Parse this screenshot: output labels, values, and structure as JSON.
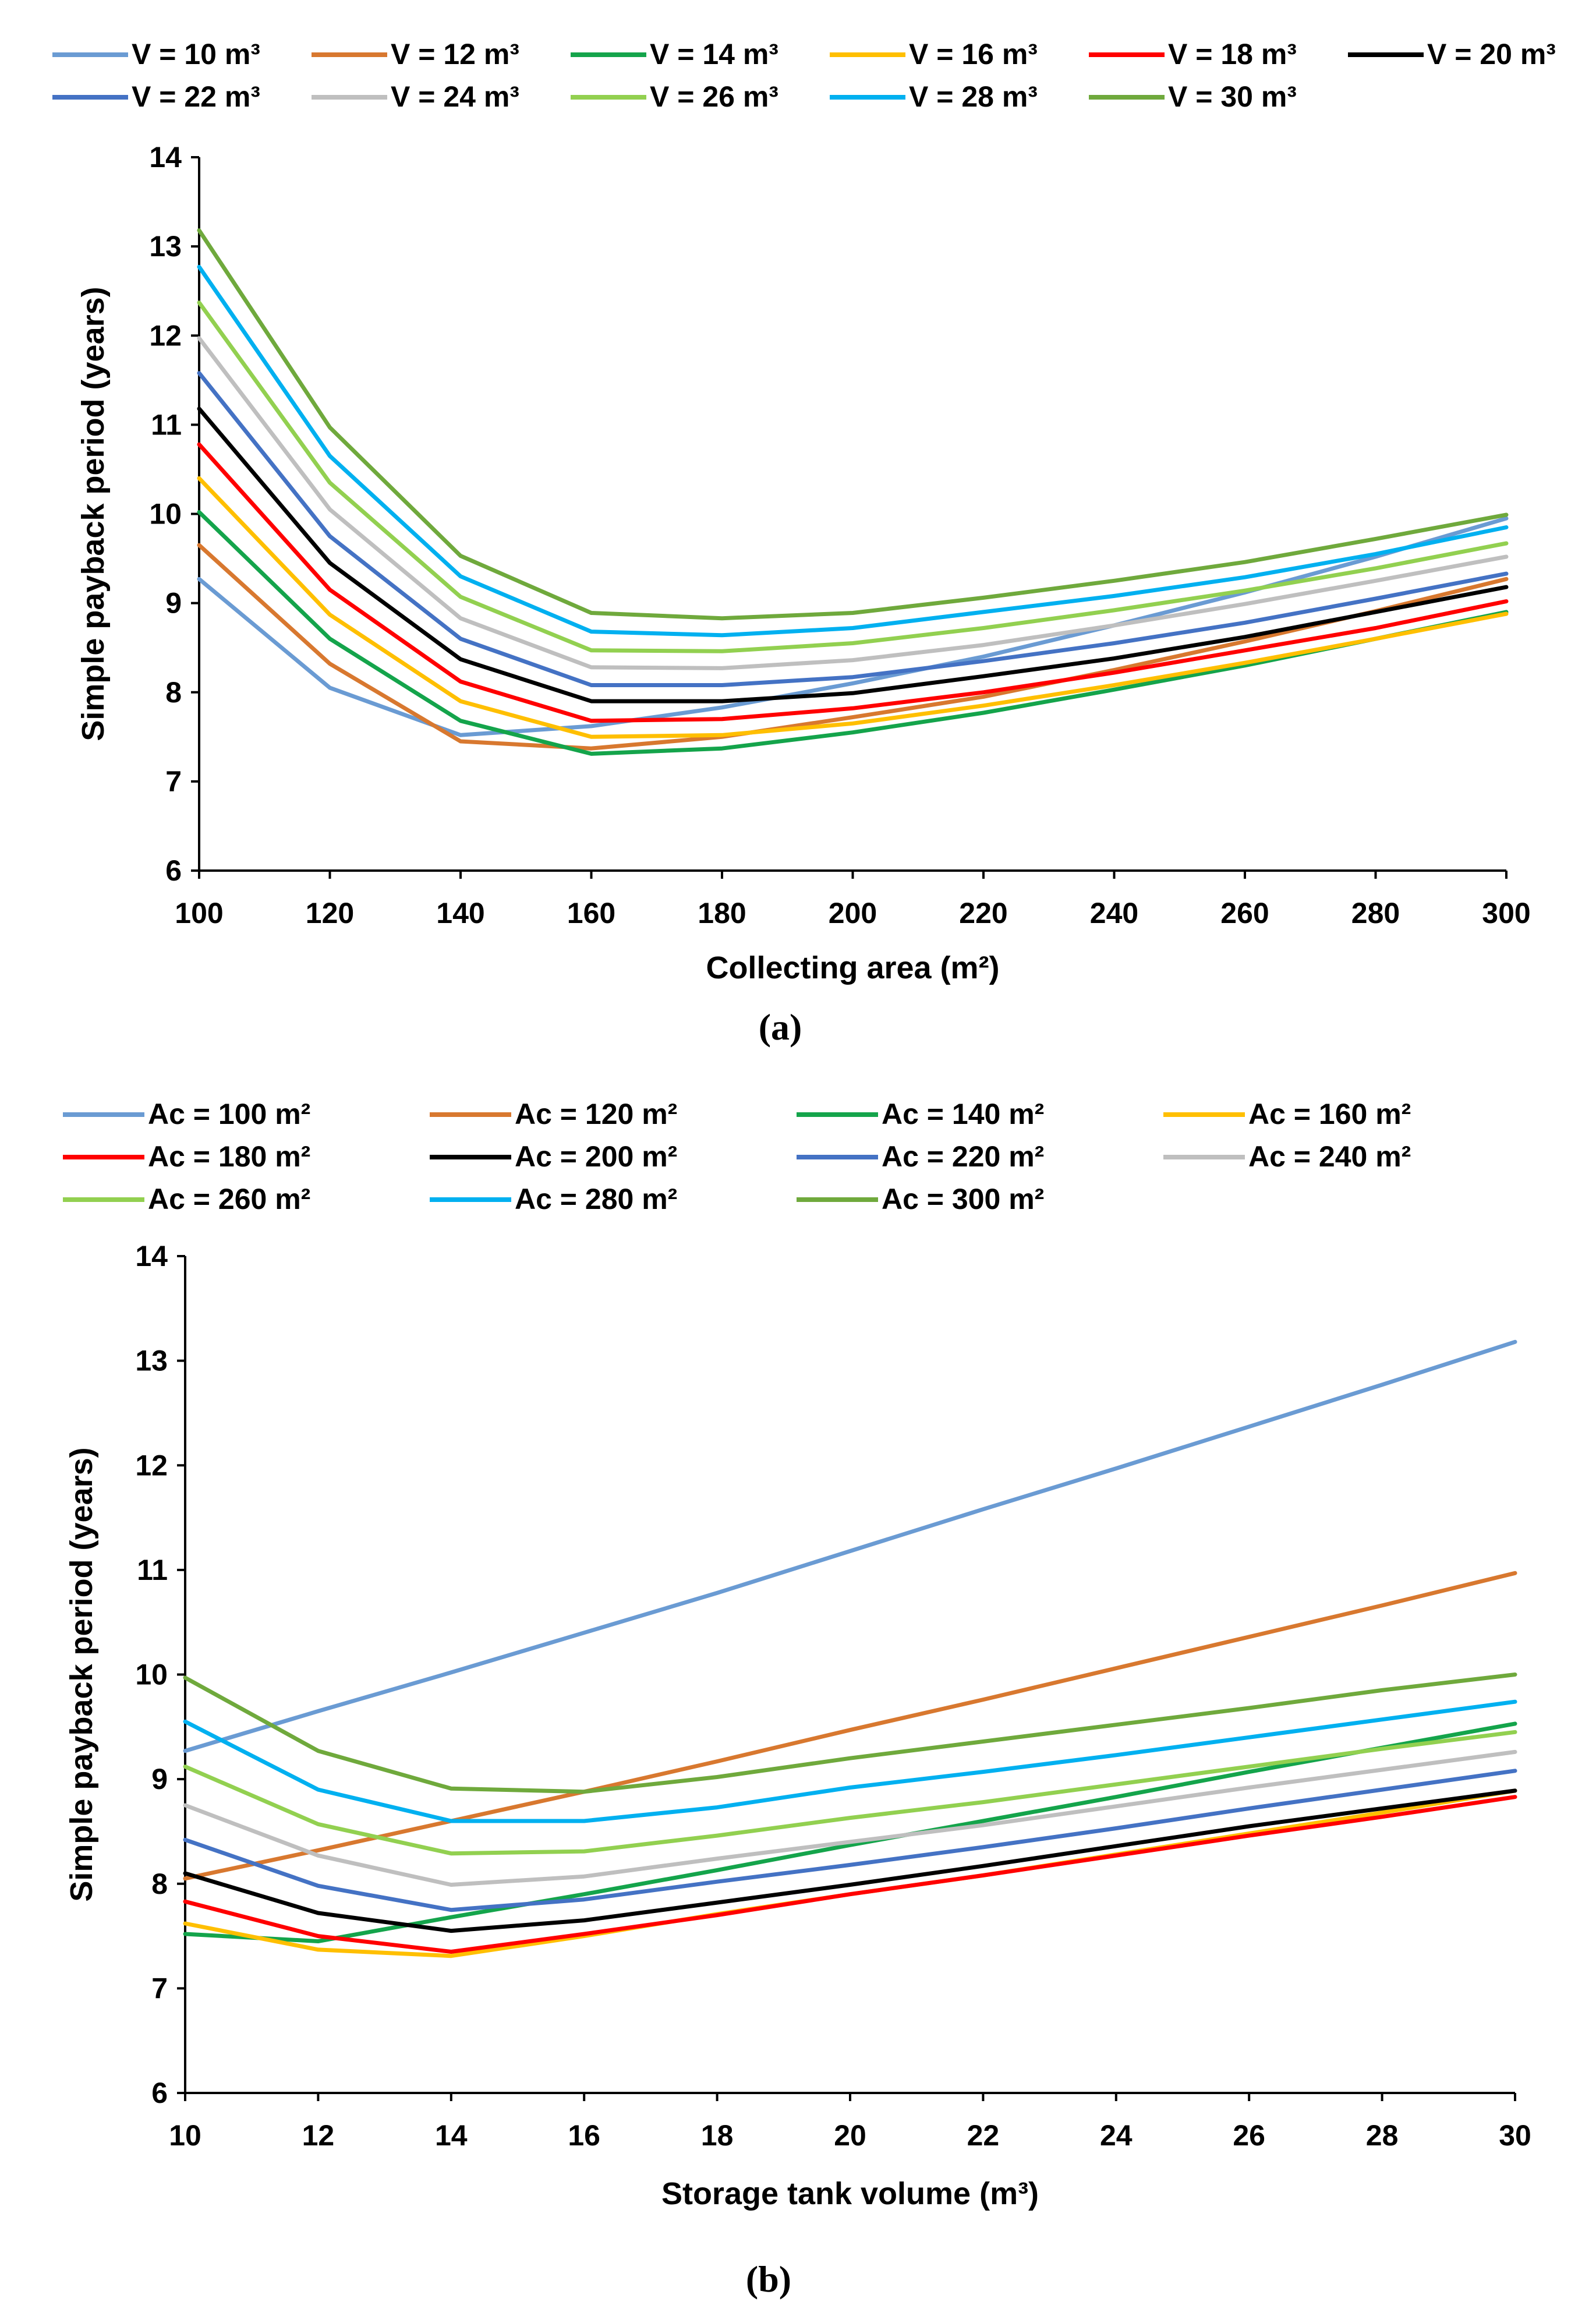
{
  "chart_data": [
    {
      "type": "line",
      "panel_label": "(a)",
      "xlabel": "Collecting area (m²)",
      "ylabel": "Simple payback period (years)",
      "x": [
        100,
        120,
        140,
        160,
        180,
        200,
        220,
        240,
        260,
        280,
        300
      ],
      "xlim": [
        100,
        300
      ],
      "ylim": [
        6,
        14
      ],
      "x_ticks": [
        "100",
        "120",
        "140",
        "160",
        "180",
        "200",
        "220",
        "240",
        "260",
        "280",
        "300"
      ],
      "y_ticks": [
        "6",
        "7",
        "8",
        "9",
        "10",
        "11",
        "12",
        "13",
        "14"
      ],
      "grid": false,
      "legend_position": "top",
      "series": [
        {
          "name": "V = 10 m³",
          "color": "#6a9bd3",
          "values": [
            9.27,
            8.05,
            7.52,
            7.62,
            7.83,
            8.1,
            8.4,
            8.75,
            9.12,
            9.52,
            9.95
          ]
        },
        {
          "name": "V = 12 m³",
          "color": "#d8782f",
          "values": [
            9.65,
            8.32,
            7.45,
            7.37,
            7.5,
            7.72,
            7.95,
            8.25,
            8.57,
            8.91,
            9.27
          ]
        },
        {
          "name": "V = 14 m³",
          "color": "#14a44b",
          "values": [
            10.02,
            8.6,
            7.68,
            7.31,
            7.37,
            7.55,
            7.77,
            8.03,
            8.3,
            8.6,
            8.9
          ]
        },
        {
          "name": "V = 16 m³",
          "color": "#ffbf00",
          "values": [
            10.4,
            8.87,
            7.9,
            7.5,
            7.52,
            7.65,
            7.85,
            8.08,
            8.33,
            8.6,
            8.88
          ]
        },
        {
          "name": "V = 18 m³",
          "color": "#ff0000",
          "values": [
            10.78,
            9.15,
            8.12,
            7.68,
            7.7,
            7.82,
            8.0,
            8.22,
            8.47,
            8.72,
            9.02
          ]
        },
        {
          "name": "V = 20 m³",
          "color": "#000000",
          "values": [
            11.18,
            9.45,
            8.37,
            7.9,
            7.9,
            7.99,
            8.18,
            8.38,
            8.62,
            8.9,
            9.18
          ]
        },
        {
          "name": "V = 22 m³",
          "color": "#4472c4",
          "values": [
            11.58,
            9.75,
            8.6,
            8.08,
            8.08,
            8.17,
            8.35,
            8.55,
            8.78,
            9.05,
            9.33
          ]
        },
        {
          "name": "V = 24 m³",
          "color": "#bfbfbf",
          "values": [
            11.97,
            10.05,
            8.83,
            8.28,
            8.27,
            8.36,
            8.53,
            8.75,
            8.99,
            9.25,
            9.52
          ]
        },
        {
          "name": "V = 26 m³",
          "color": "#92d050",
          "values": [
            12.37,
            10.35,
            9.07,
            8.47,
            8.46,
            8.55,
            8.72,
            8.92,
            9.14,
            9.39,
            9.67
          ]
        },
        {
          "name": "V = 28 m³",
          "color": "#00b0f0",
          "values": [
            12.77,
            10.65,
            9.3,
            8.68,
            8.64,
            8.72,
            8.9,
            9.08,
            9.29,
            9.55,
            9.85
          ]
        },
        {
          "name": "V = 30 m³",
          "color": "#6fa93c",
          "values": [
            13.18,
            10.97,
            9.53,
            8.89,
            8.83,
            8.89,
            9.06,
            9.25,
            9.46,
            9.72,
            9.99
          ]
        }
      ]
    },
    {
      "type": "line",
      "panel_label": "(b)",
      "xlabel": "Storage tank volume (m³)",
      "ylabel": "Simple payback period (years)",
      "x": [
        10,
        12,
        14,
        16,
        18,
        20,
        22,
        24,
        26,
        28,
        30
      ],
      "xlim": [
        10,
        30
      ],
      "ylim": [
        6,
        14
      ],
      "x_ticks": [
        "10",
        "12",
        "14",
        "16",
        "18",
        "20",
        "22",
        "24",
        "26",
        "28",
        "30"
      ],
      "y_ticks": [
        "6",
        "7",
        "8",
        "9",
        "10",
        "11",
        "12",
        "13",
        "14"
      ],
      "grid": false,
      "legend_position": "top",
      "series": [
        {
          "name": "Ac = 100 m²",
          "color": "#6a9bd3",
          "values": [
            9.27,
            9.65,
            10.02,
            10.4,
            10.78,
            11.18,
            11.58,
            11.97,
            12.37,
            12.77,
            13.18
          ]
        },
        {
          "name": "Ac = 120 m²",
          "color": "#d8782f",
          "values": [
            8.05,
            8.32,
            8.6,
            8.88,
            9.17,
            9.47,
            9.76,
            10.06,
            10.36,
            10.66,
            10.97
          ]
        },
        {
          "name": "Ac = 140 m²",
          "color": "#14a44b",
          "values": [
            7.52,
            7.45,
            7.68,
            7.9,
            8.13,
            8.37,
            8.6,
            8.83,
            9.07,
            9.3,
            9.53
          ]
        },
        {
          "name": "Ac = 160 m²",
          "color": "#ffbf00",
          "values": [
            7.62,
            7.37,
            7.31,
            7.5,
            7.71,
            7.9,
            8.08,
            8.28,
            8.48,
            8.68,
            8.89
          ]
        },
        {
          "name": "Ac = 180 m²",
          "color": "#ff0000",
          "values": [
            7.83,
            7.5,
            7.35,
            7.52,
            7.7,
            7.9,
            8.08,
            8.27,
            8.46,
            8.64,
            8.83
          ]
        },
        {
          "name": "Ac = 200 m²",
          "color": "#000000",
          "values": [
            8.1,
            7.72,
            7.55,
            7.65,
            7.82,
            7.99,
            8.17,
            8.36,
            8.55,
            8.72,
            8.89
          ]
        },
        {
          "name": "Ac = 220 m²",
          "color": "#4472c4",
          "values": [
            8.42,
            7.98,
            7.75,
            7.85,
            8.02,
            8.18,
            8.35,
            8.53,
            8.72,
            8.9,
            9.08
          ]
        },
        {
          "name": "Ac = 240 m²",
          "color": "#bfbfbf",
          "values": [
            8.75,
            8.27,
            7.99,
            8.07,
            8.24,
            8.4,
            8.56,
            8.74,
            8.92,
            9.09,
            9.26
          ]
        },
        {
          "name": "Ac = 260 m²",
          "color": "#92d050",
          "values": [
            9.12,
            8.57,
            8.29,
            8.31,
            8.46,
            8.63,
            8.78,
            8.95,
            9.12,
            9.29,
            9.45
          ]
        },
        {
          "name": "Ac = 280 m²",
          "color": "#00b0f0",
          "values": [
            9.55,
            8.9,
            8.6,
            8.6,
            8.73,
            8.92,
            9.07,
            9.23,
            9.4,
            9.57,
            9.74
          ]
        },
        {
          "name": "Ac = 300 m²",
          "color": "#6fa93c",
          "values": [
            9.97,
            9.27,
            8.91,
            8.88,
            9.02,
            9.2,
            9.36,
            9.52,
            9.68,
            9.85,
            10.0
          ]
        }
      ]
    }
  ]
}
